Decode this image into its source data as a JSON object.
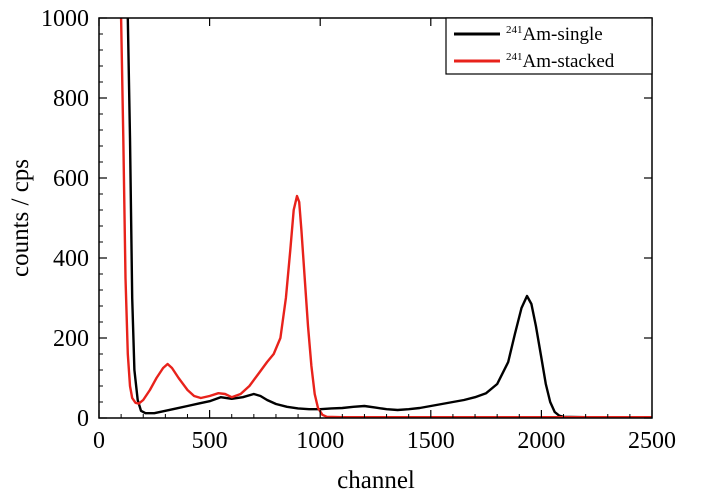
{
  "chart_data": {
    "type": "line",
    "title": "",
    "xlabel": "channel",
    "ylabel": "counts / cps",
    "xlim": [
      0,
      2500
    ],
    "ylim": [
      0,
      1000
    ],
    "xticks": [
      "0",
      "500",
      "1000",
      "1500",
      "2000",
      "2500"
    ],
    "yticks": [
      "0",
      "200",
      "400",
      "600",
      "800",
      "1000"
    ],
    "grid": false,
    "legend_position": "top-right",
    "series": [
      {
        "name_sup": "241",
        "name": "Am-single",
        "color": "#000000",
        "points": [
          [
            130,
            1000
          ],
          [
            140,
            700
          ],
          [
            150,
            300
          ],
          [
            160,
            120
          ],
          [
            175,
            45
          ],
          [
            190,
            18
          ],
          [
            210,
            12
          ],
          [
            250,
            12
          ],
          [
            300,
            18
          ],
          [
            350,
            24
          ],
          [
            400,
            30
          ],
          [
            450,
            36
          ],
          [
            500,
            42
          ],
          [
            550,
            52
          ],
          [
            600,
            48
          ],
          [
            650,
            52
          ],
          [
            700,
            60
          ],
          [
            730,
            55
          ],
          [
            760,
            45
          ],
          [
            800,
            35
          ],
          [
            850,
            28
          ],
          [
            900,
            24
          ],
          [
            950,
            22
          ],
          [
            1000,
            22
          ],
          [
            1050,
            24
          ],
          [
            1100,
            25
          ],
          [
            1150,
            28
          ],
          [
            1200,
            30
          ],
          [
            1250,
            26
          ],
          [
            1300,
            22
          ],
          [
            1350,
            20
          ],
          [
            1400,
            22
          ],
          [
            1450,
            25
          ],
          [
            1500,
            30
          ],
          [
            1550,
            35
          ],
          [
            1600,
            40
          ],
          [
            1650,
            45
          ],
          [
            1700,
            52
          ],
          [
            1750,
            62
          ],
          [
            1800,
            85
          ],
          [
            1850,
            140
          ],
          [
            1880,
            210
          ],
          [
            1910,
            275
          ],
          [
            1935,
            305
          ],
          [
            1955,
            285
          ],
          [
            1975,
            230
          ],
          [
            2000,
            150
          ],
          [
            2020,
            85
          ],
          [
            2040,
            40
          ],
          [
            2060,
            15
          ],
          [
            2080,
            6
          ],
          [
            2100,
            3
          ],
          [
            2200,
            2
          ],
          [
            2300,
            2
          ],
          [
            2400,
            2
          ],
          [
            2500,
            2
          ]
        ]
      },
      {
        "name_sup": "241",
        "name": "Am-stacked",
        "color": "#e8221b",
        "points": [
          [
            100,
            1000
          ],
          [
            110,
            700
          ],
          [
            120,
            350
          ],
          [
            130,
            160
          ],
          [
            140,
            80
          ],
          [
            150,
            50
          ],
          [
            165,
            38
          ],
          [
            180,
            36
          ],
          [
            200,
            45
          ],
          [
            230,
            70
          ],
          [
            260,
            100
          ],
          [
            290,
            125
          ],
          [
            310,
            135
          ],
          [
            330,
            125
          ],
          [
            360,
            100
          ],
          [
            400,
            70
          ],
          [
            430,
            55
          ],
          [
            460,
            50
          ],
          [
            500,
            55
          ],
          [
            540,
            62
          ],
          [
            570,
            60
          ],
          [
            600,
            52
          ],
          [
            640,
            60
          ],
          [
            680,
            80
          ],
          [
            720,
            110
          ],
          [
            760,
            140
          ],
          [
            790,
            160
          ],
          [
            820,
            200
          ],
          [
            845,
            300
          ],
          [
            865,
            420
          ],
          [
            880,
            520
          ],
          [
            895,
            555
          ],
          [
            905,
            540
          ],
          [
            915,
            470
          ],
          [
            930,
            350
          ],
          [
            945,
            230
          ],
          [
            960,
            130
          ],
          [
            975,
            60
          ],
          [
            990,
            25
          ],
          [
            1010,
            8
          ],
          [
            1030,
            3
          ],
          [
            1100,
            2
          ],
          [
            1500,
            2
          ],
          [
            2000,
            2
          ],
          [
            2500,
            2
          ]
        ]
      }
    ]
  }
}
